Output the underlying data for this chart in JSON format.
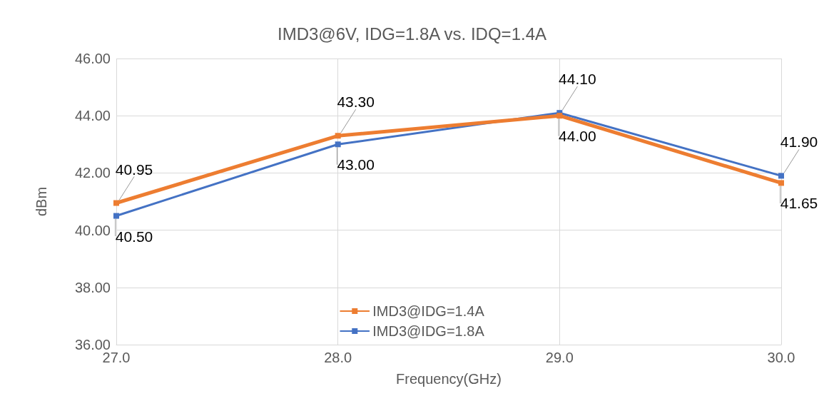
{
  "chart_data": {
    "type": "line",
    "title": "IMD3@6V, IDG=1.8A vs. IDQ=1.4A",
    "xlabel": "Frequency(GHz)",
    "ylabel": "dBm",
    "x": [
      27,
      28,
      29,
      30
    ],
    "series": [
      {
        "name": "IMD3@IDG=1.4A",
        "color": "#ed7d31",
        "values": [
          40.95,
          43.3,
          44.0,
          41.65
        ],
        "value_labels": [
          "40.95",
          "43.30",
          "44.00",
          "41.65"
        ]
      },
      {
        "name": "IMD3@IDG=1.8A",
        "color": "#4472c4",
        "values": [
          40.5,
          43.0,
          44.1,
          41.9
        ],
        "value_labels": [
          "40.50",
          "43.00",
          "44.10",
          "41.90"
        ]
      }
    ],
    "xlim": [
      27,
      30
    ],
    "xticks": [
      {
        "value": 27,
        "label": "27.0"
      },
      {
        "value": 28,
        "label": "28.0"
      },
      {
        "value": 29,
        "label": "29.0"
      },
      {
        "value": 30,
        "label": "30.0"
      }
    ],
    "ylim": [
      36,
      46
    ],
    "yticks": [
      {
        "value": 36,
        "label": "36.00"
      },
      {
        "value": 38,
        "label": "38.00"
      },
      {
        "value": 40,
        "label": "40.00"
      },
      {
        "value": 42,
        "label": "42.00"
      },
      {
        "value": 44,
        "label": "44.00"
      },
      {
        "value": 46,
        "label": "46.00"
      }
    ],
    "grid": true,
    "legend": "bottom",
    "marker": "square",
    "line_style": "solid"
  }
}
